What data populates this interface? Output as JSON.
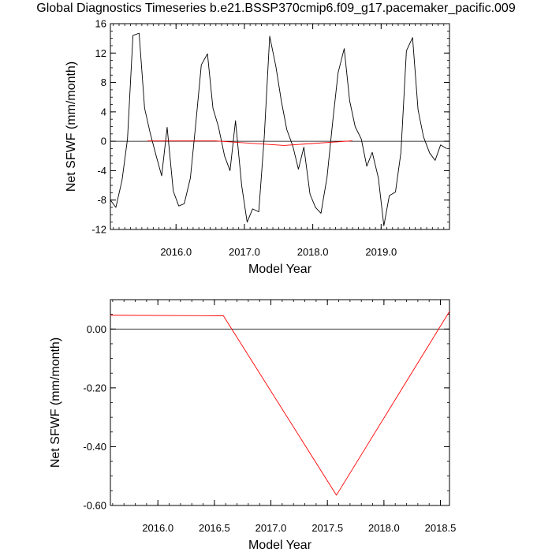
{
  "title": "Global Diagnostics Timeseries b.e21.BSSP370cmip6.f09_g17.pacemaker_pacific.009",
  "colors": {
    "monthly": "#000000",
    "annual": "#ff0000",
    "zero_line": "#000000"
  },
  "chart_data": [
    {
      "type": "line",
      "xlabel": "Model Year",
      "ylabel": "Net SFWF (mm/month)",
      "xlim": [
        2015.04,
        2020.0
      ],
      "ylim": [
        -12,
        16
      ],
      "xticks": [
        {
          "value": 2016.0,
          "label": "2016.0"
        },
        {
          "value": 2017.0,
          "label": "2017.0"
        },
        {
          "value": 2018.0,
          "label": "2018.0"
        },
        {
          "value": 2019.0,
          "label": "2019.0"
        }
      ],
      "yticks": [
        {
          "value": 16,
          "label": "16"
        },
        {
          "value": 12,
          "label": "12"
        },
        {
          "value": 8,
          "label": "8"
        },
        {
          "value": 4,
          "label": "4"
        },
        {
          "value": 0,
          "label": "0"
        },
        {
          "value": -4,
          "label": "-4"
        },
        {
          "value": -8,
          "label": "-8"
        },
        {
          "value": -12,
          "label": "-12"
        }
      ],
      "reference_line": 0,
      "series": [
        {
          "color": "#000000",
          "x": [
            2015.04,
            2015.12,
            2015.21,
            2015.29,
            2015.37,
            2015.46,
            2015.54,
            2015.62,
            2015.71,
            2015.79,
            2015.87,
            2015.96,
            2016.04,
            2016.12,
            2016.21,
            2016.29,
            2016.37,
            2016.46,
            2016.54,
            2016.62,
            2016.71,
            2016.79,
            2016.87,
            2016.96,
            2017.04,
            2017.12,
            2017.21,
            2017.29,
            2017.37,
            2017.46,
            2017.54,
            2017.62,
            2017.71,
            2017.79,
            2017.87,
            2017.96,
            2018.04,
            2018.12,
            2018.21,
            2018.29,
            2018.37,
            2018.46,
            2018.54,
            2018.62,
            2018.71,
            2018.79,
            2018.87,
            2018.96,
            2019.04,
            2019.12,
            2019.21,
            2019.29,
            2019.37,
            2019.46,
            2019.54,
            2019.62,
            2019.71,
            2019.79,
            2019.87,
            2019.96
          ],
          "y": [
            -8.0,
            -9.0,
            -5.3,
            0.3,
            14.4,
            14.7,
            4.5,
            1.2,
            -2.0,
            -4.7,
            1.9,
            -6.8,
            -8.8,
            -8.5,
            -5.0,
            2.5,
            10.4,
            11.9,
            4.5,
            2.0,
            -2.0,
            -4.0,
            2.8,
            -6.0,
            -11.0,
            -9.2,
            -9.6,
            0.5,
            14.3,
            10.2,
            5.5,
            1.6,
            -0.7,
            -3.8,
            -0.8,
            -7.2,
            -9.0,
            -9.8,
            -4.8,
            2.5,
            9.3,
            12.6,
            5.5,
            2.0,
            0.3,
            -3.4,
            -1.5,
            -5.0,
            -11.5,
            -7.4,
            -6.9,
            -1.5,
            12.3,
            14.1,
            4.3,
            0.6,
            -1.6,
            -2.6,
            -0.5,
            -1.0
          ]
        },
        {
          "color": "#ff0000",
          "x": [
            2015.58,
            2016.58,
            2017.58,
            2018.58
          ],
          "y": [
            0.047,
            0.045,
            -0.565,
            0.06
          ]
        }
      ]
    },
    {
      "type": "line",
      "xlabel": "Model Year",
      "ylabel": "Net SFWF (mm/month)",
      "xlim": [
        2015.58,
        2018.58
      ],
      "ylim": [
        -0.6,
        0.1
      ],
      "xticks": [
        {
          "value": 2016.0,
          "label": "2016.0"
        },
        {
          "value": 2016.5,
          "label": "2016.5"
        },
        {
          "value": 2017.0,
          "label": "2017.0"
        },
        {
          "value": 2017.5,
          "label": "2017.5"
        },
        {
          "value": 2018.0,
          "label": "2018.0"
        },
        {
          "value": 2018.5,
          "label": "2018.5"
        }
      ],
      "yticks": [
        {
          "value": 0.0,
          "label": "0.00"
        },
        {
          "value": -0.2,
          "label": "-0.20"
        },
        {
          "value": -0.4,
          "label": "-0.40"
        },
        {
          "value": -0.6,
          "label": "-0.60"
        }
      ],
      "reference_line": 0,
      "series": [
        {
          "color": "#ff0000",
          "x": [
            2015.58,
            2016.58,
            2017.58,
            2018.58
          ],
          "y": [
            0.047,
            0.045,
            -0.565,
            0.06
          ]
        }
      ]
    }
  ]
}
